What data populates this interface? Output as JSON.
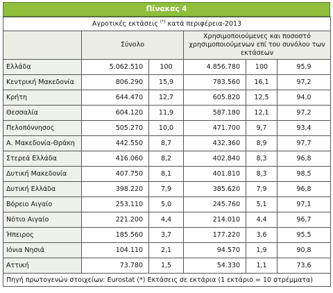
{
  "header": {
    "title": "Πίνακας 4"
  },
  "table": {
    "title": {
      "text": "Αγροτικές εκτάσεις",
      "superscript": "(*)",
      "suffix": "κατά περιφέρεια-2013"
    },
    "column_headers": [
      "Σύνολο",
      "Χρησιμοποιούμενες και ποσοστό χρησιμοποιούμενων επί του συνόλου των εκτάσεων"
    ],
    "rows": [
      [
        "Ελλάδα",
        "5.062.510",
        "100",
        "4.856.780",
        "100",
        "95,9"
      ],
      [
        "Κεντρική Μακεδονία",
        "806.290",
        "15,9",
        "783.560",
        "16,1",
        "97,2"
      ],
      [
        "Κρήτη",
        "644.470",
        "12,7",
        "605.820",
        "12,5",
        "94,0"
      ],
      [
        "Θεσσαλία",
        "604.120",
        "11,9",
        "587.180",
        "12,1",
        "97,2"
      ],
      [
        "Πελοπόννησος",
        "505.270",
        "10,0",
        "471.700",
        "9,7",
        "93,4"
      ],
      [
        "Α. Μακεδονία-Θράκη",
        "442.550",
        "8,7",
        "432.360",
        "8,9",
        "97,7"
      ],
      [
        "Στερεά Ελλάδα",
        "416.060",
        "8,2",
        "402.840",
        "8,3",
        "96,8"
      ],
      [
        "Δυτική Μακεδονία",
        "407.750",
        "8,1",
        "401.810",
        "8,3",
        "98,5"
      ],
      [
        "Δυτική Ελλάδα",
        "398.220",
        "7,9",
        "385.620",
        "7,9",
        "96,8"
      ],
      [
        "Βόρειο Αιγαίο",
        "253.110",
        "5,0",
        "245.760",
        "5,1",
        "97,1"
      ],
      [
        "Νότιο Αιγαίο",
        "221.200",
        "4,4",
        "214.010",
        "4,4",
        "96,7"
      ],
      [
        "Ήπειρος",
        "185.560",
        "3,7",
        "177.220",
        "3,6",
        "95,5"
      ],
      [
        "Ιόνια Νησιά",
        "104.110",
        "2,1",
        "94.570",
        "1,9",
        "90,8"
      ],
      [
        "Αττική",
        "73.780",
        "1,5",
        "54.330",
        "1,1",
        "73,6"
      ]
    ],
    "footer": "Πηγή πρωτογενών στοιχείων: Eurostat  (*) Εκτάσεις σε εκτάρια (1 εκτάριο = 10 στρέμματα)"
  }
}
